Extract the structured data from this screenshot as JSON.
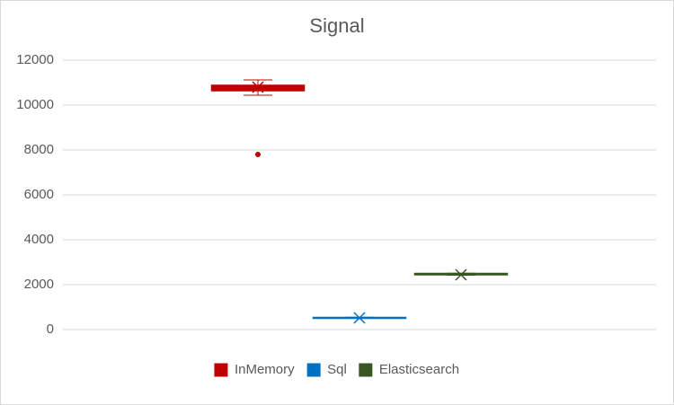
{
  "chart_data": {
    "type": "box",
    "title": "Signal",
    "series": [
      {
        "name": "InMemory",
        "color": "#c00000",
        "min": 10440,
        "q1": 10640,
        "median": 10760,
        "q3": 10880,
        "max": 11120,
        "mean": 10800,
        "outliers": [
          7800
        ]
      },
      {
        "name": "Sql",
        "color": "#0070c0",
        "min": 500,
        "q1": 510,
        "median": 520,
        "q3": 540,
        "max": 550,
        "mean": 520,
        "outliers": []
      },
      {
        "name": "Elasticsearch",
        "color": "#375623",
        "min": 2420,
        "q1": 2440,
        "median": 2460,
        "q3": 2500,
        "max": 2510,
        "mean": 2440,
        "outliers": []
      }
    ],
    "ylim": [
      0,
      12000
    ],
    "yticks": [
      0,
      2000,
      4000,
      6000,
      8000,
      10000,
      12000
    ],
    "grid": true,
    "legend": "bottom"
  }
}
